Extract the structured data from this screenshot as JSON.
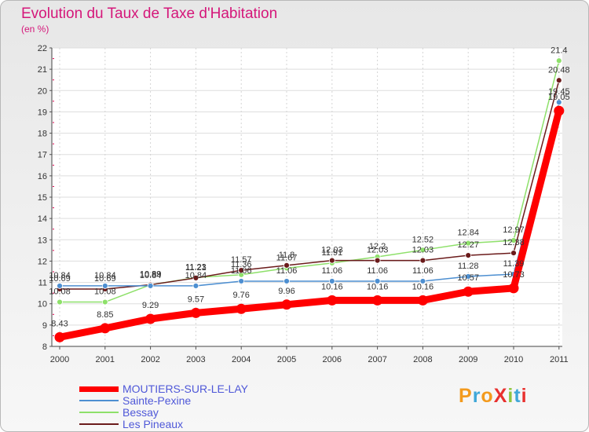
{
  "header": {
    "title": "Evolution du Taux de Taxe d'Habitation",
    "unit": "(en %)"
  },
  "logo": {
    "text": "ProXiti"
  },
  "chart_data": {
    "type": "line",
    "title": "Evolution du Taux de Taxe d'Habitation",
    "ylabel": "(en %)",
    "xlabel": "",
    "x": [
      "2000",
      "2001",
      "2002",
      "2003",
      "2004",
      "2005",
      "2006",
      "2007",
      "2008",
      "2009",
      "2010",
      "2011"
    ],
    "ylim": [
      8,
      22
    ],
    "yticks": [
      8,
      9,
      10,
      11,
      12,
      13,
      14,
      15,
      16,
      17,
      18,
      19,
      20,
      21,
      22
    ],
    "grid": true,
    "legend_position": "bottom-left",
    "series": [
      {
        "name": "MOUTIERS-SUR-LE-LAY",
        "color": "#ff0000",
        "values": [
          8.43,
          8.85,
          9.29,
          9.57,
          9.76,
          9.96,
          10.16,
          10.16,
          10.16,
          10.57,
          10.73,
          19.05
        ]
      },
      {
        "name": "Sainte-Pexine",
        "color": "#4d8fd1",
        "values": [
          10.84,
          10.84,
          10.84,
          10.84,
          11.06,
          11.06,
          11.06,
          11.06,
          11.06,
          11.28,
          11.39,
          19.45
        ]
      },
      {
        "name": "Bessay",
        "color": "#8ee06a",
        "values": [
          10.08,
          10.08,
          10.89,
          11.23,
          11.36,
          11.67,
          11.91,
          12.2,
          12.52,
          12.84,
          12.97,
          21.4
        ]
      },
      {
        "name": "Les Pineaux",
        "color": "#6b1b1b",
        "values": [
          10.69,
          10.69,
          10.89,
          11.21,
          11.57,
          11.8,
          12.03,
          12.03,
          12.03,
          12.27,
          12.38,
          20.48
        ]
      }
    ]
  }
}
